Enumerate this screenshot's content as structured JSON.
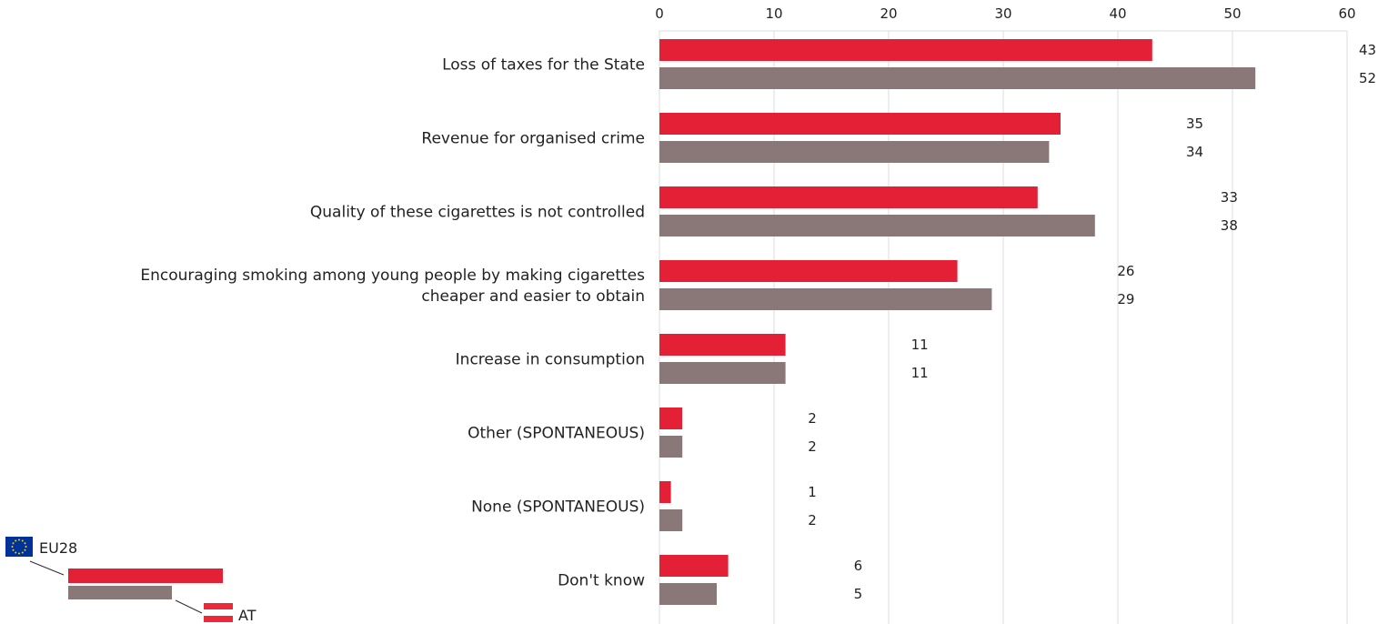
{
  "chart_data": {
    "type": "bar",
    "orientation": "horizontal",
    "xlim": [
      0,
      60
    ],
    "x_ticks": [
      0,
      10,
      20,
      30,
      40,
      50,
      60
    ],
    "grid": true,
    "categories": [
      [
        "Loss of taxes for the State"
      ],
      [
        "Revenue for organised crime"
      ],
      [
        "Quality of these cigarettes is not controlled"
      ],
      [
        "Encouraging smoking among young people by making cigarettes",
        "cheaper and easier to obtain"
      ],
      [
        "Increase in consumption"
      ],
      [
        "Other (SPONTANEOUS)"
      ],
      [
        "None (SPONTANEOUS)"
      ],
      [
        "Don't know"
      ]
    ],
    "series": [
      {
        "name": "EU28",
        "color": "#e32036",
        "values": [
          43,
          35,
          33,
          26,
          11,
          2,
          1,
          6
        ]
      },
      {
        "name": "AT",
        "color": "#8a7878",
        "values": [
          52,
          34,
          38,
          29,
          11,
          2,
          2,
          5
        ]
      }
    ],
    "legend": {
      "position": "bottom-left",
      "labels": [
        "EU28",
        "AT"
      ]
    }
  }
}
